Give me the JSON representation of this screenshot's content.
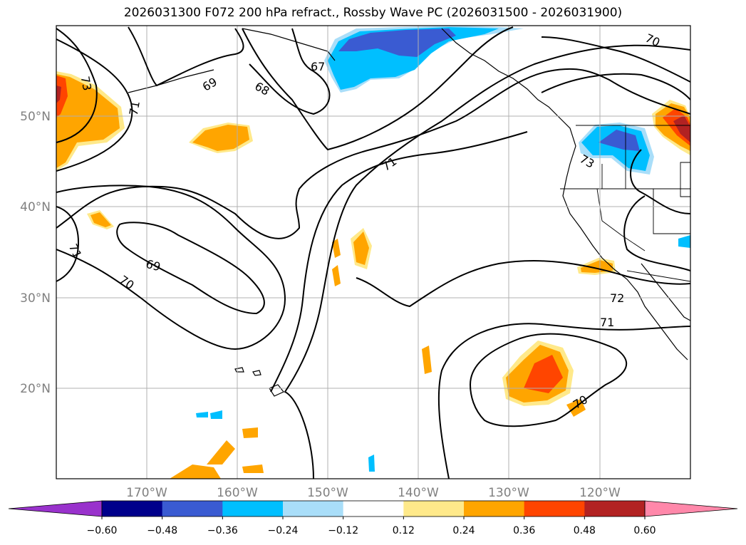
{
  "title": "2026031300 F072 200 hPa refract., Rossby Wave PC (2026031500 - 2026031900)",
  "map": {
    "lon_labels": [
      "170°W",
      "160°W",
      "150°W",
      "140°W",
      "130°W",
      "120°W"
    ],
    "lat_labels": [
      "50°N",
      "40°N",
      "30°N",
      "20°N"
    ],
    "contour_labels": [
      "73",
      "71",
      "69",
      "68",
      "67",
      "70",
      "71",
      "73",
      "69",
      "71",
      "70",
      "72",
      "71",
      "70"
    ]
  },
  "colorbar": {
    "tick_labels": [
      "−0.60",
      "−0.48",
      "−0.36",
      "−0.24",
      "−0.12",
      "0.12",
      "0.24",
      "0.36",
      "0.48",
      "0.60"
    ],
    "colors": [
      "#9932cc",
      "#00008b",
      "#3a5bd2",
      "#00bfff",
      "#a9def9",
      "#ffffff",
      "#ffe98a",
      "#ffa500",
      "#ff4500",
      "#b22222",
      "#ff88aa"
    ]
  }
}
